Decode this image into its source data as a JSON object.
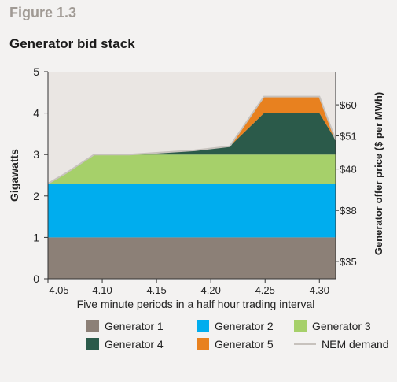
{
  "figure": {
    "label": "Figure 1.3",
    "title": "Generator bid stack"
  },
  "chart_data": {
    "type": "area",
    "title": "Generator bid stack",
    "xlabel": "Five minute periods in a half hour trading interval",
    "ylabel": "Gigawatts",
    "y2label": "Generator offer price ($ per MWh)",
    "ylim": [
      0,
      5
    ],
    "yticks": [
      0,
      1,
      2,
      3,
      4,
      5
    ],
    "xticks": [
      "4.05",
      "4.10",
      "4.15",
      "4.20",
      "4.25",
      "4.30"
    ],
    "x": [
      0,
      0.33,
      0.85,
      1.5,
      2.7,
      3.35,
      3.98,
      4.0,
      4.5,
      5.0,
      5.3
    ],
    "price_ticks": [
      {
        "label": "$60",
        "y": 4.2
      },
      {
        "label": "$51",
        "y": 3.45
      },
      {
        "label": "$48",
        "y": 2.65
      },
      {
        "label": "$38",
        "y": 1.65
      },
      {
        "label": "$35",
        "y": 0.42
      }
    ],
    "series": [
      {
        "name": "Generator 1",
        "color": "#8c8077",
        "values": [
          1.0,
          1.0,
          1.0,
          1.0,
          1.0,
          1.0,
          1.0,
          1.0,
          1.0,
          1.0,
          1.0
        ]
      },
      {
        "name": "Generator 2",
        "color": "#00adee",
        "values": [
          1.3,
          1.3,
          1.3,
          1.3,
          1.3,
          1.3,
          1.3,
          1.3,
          1.3,
          1.3,
          1.3
        ]
      },
      {
        "name": "Generator 3",
        "color": "#a6d06a",
        "values": [
          0.0,
          0.25,
          0.7,
          0.7,
          0.7,
          0.7,
          0.7,
          0.7,
          0.7,
          0.7,
          0.7
        ]
      },
      {
        "name": "Generator 4",
        "color": "#2b5a4a",
        "values": [
          0.0,
          0.0,
          0.0,
          0.0,
          0.1,
          0.2,
          1.0,
          1.0,
          1.0,
          1.0,
          0.35
        ]
      },
      {
        "name": "Generator 5",
        "color": "#e8811f",
        "values": [
          0.0,
          0.0,
          0.0,
          0.0,
          0.0,
          0.0,
          0.4,
          0.4,
          0.4,
          0.4,
          0.0
        ]
      }
    ],
    "line": {
      "name": "NEM demand",
      "color": "#c7c2bd"
    }
  },
  "legend": [
    {
      "name": "Generator 1",
      "color": "#8c8077",
      "kind": "swatch"
    },
    {
      "name": "Generator 2",
      "color": "#00adee",
      "kind": "swatch"
    },
    {
      "name": "Generator 3",
      "color": "#a6d06a",
      "kind": "swatch"
    },
    {
      "name": "Generator 4",
      "color": "#2b5a4a",
      "kind": "swatch"
    },
    {
      "name": "Generator 5",
      "color": "#e8811f",
      "kind": "swatch"
    },
    {
      "name": "NEM demand",
      "color": "#c7c2bd",
      "kind": "line"
    }
  ]
}
